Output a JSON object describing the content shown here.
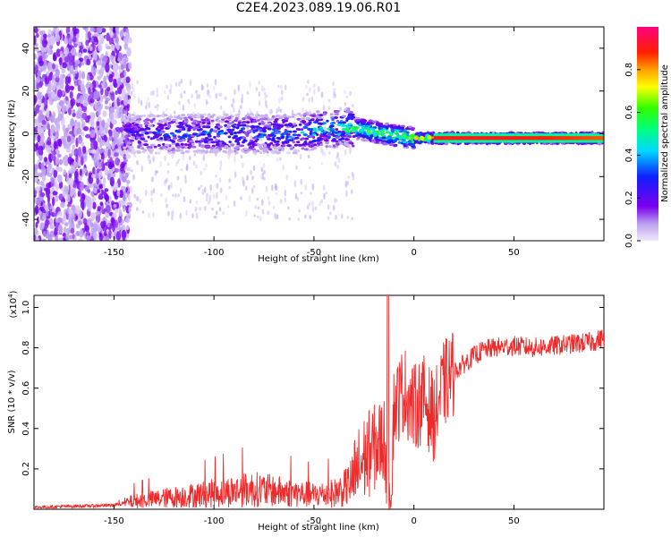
{
  "title": "C2E4.2023.089.19.06.R01",
  "chart_data": [
    {
      "type": "heatmap",
      "xlabel": "Height of straight line (km)",
      "ylabel": "Frequency (Hz)",
      "xlim": [
        -190,
        95
      ],
      "ylim": [
        -50,
        50
      ],
      "xticks": [
        -150,
        -100,
        -50,
        0,
        50
      ],
      "yticks": [
        -40,
        -20,
        0,
        20,
        40
      ],
      "xtick_labels": [
        "-150",
        "-100",
        "-50",
        "0",
        "50"
      ],
      "ytick_labels": [
        "-40",
        "-20",
        "0",
        "20",
        "40"
      ],
      "colorbar": {
        "label": "Normalized spectral amplitude",
        "range": [
          0,
          1
        ],
        "ticks": [
          0.0,
          0.2,
          0.4,
          0.6,
          0.8
        ],
        "tick_labels": [
          "0.0",
          "0.2",
          "0.4",
          "0.6",
          "0.8"
        ]
      },
      "ridge": {
        "x": [
          -145,
          -120,
          -100,
          -80,
          -60,
          -45,
          -35,
          -25,
          -15,
          0,
          10,
          20,
          50,
          90
        ],
        "freq": [
          0,
          0,
          0,
          0,
          0,
          2,
          3,
          2,
          0,
          -2,
          -2,
          -2,
          -2,
          -2
        ],
        "amplitude": [
          0.3,
          0.4,
          0.4,
          0.45,
          0.45,
          0.55,
          0.65,
          0.7,
          0.75,
          0.85,
          0.9,
          0.9,
          0.9,
          0.85
        ]
      }
    },
    {
      "type": "line",
      "xlabel": "Height of straight line (km)",
      "ylabel": "SNR (10 * v/v)",
      "scale_label": "(x10",
      "scale_exp": "4",
      "scale_close": ")",
      "xlim": [
        -190,
        95
      ],
      "ylim": [
        0,
        1.06
      ],
      "xticks": [
        -150,
        -100,
        -50,
        0,
        50
      ],
      "yticks": [
        0.2,
        0.4,
        0.6,
        0.8,
        1.0
      ],
      "xtick_labels": [
        "-150",
        "-100",
        "-50",
        "0",
        "50"
      ],
      "ytick_labels": [
        "0.2",
        "0.4",
        "0.6",
        "0.8",
        "1.0"
      ],
      "color": "#ee2a2a",
      "series": [
        {
          "x": [
            -190,
            -170,
            -150,
            -140,
            -130,
            -120,
            -110,
            -100,
            -90,
            -80,
            -70,
            -60,
            -50,
            -40,
            -35,
            -30,
            -25,
            -20,
            -15,
            -12,
            -10,
            -5,
            0,
            5,
            10,
            15,
            20,
            25,
            30,
            35,
            40,
            50,
            60,
            70,
            80,
            90,
            95
          ],
          "values": [
            0.01,
            0.015,
            0.02,
            0.04,
            0.05,
            0.06,
            0.07,
            0.08,
            0.09,
            0.1,
            0.09,
            0.08,
            0.07,
            0.08,
            0.1,
            0.15,
            0.25,
            0.3,
            0.35,
            0.1,
            0.5,
            0.6,
            0.5,
            0.55,
            0.45,
            0.62,
            0.68,
            0.72,
            0.76,
            0.79,
            0.8,
            0.81,
            0.8,
            0.81,
            0.82,
            0.83,
            0.85
          ]
        }
      ]
    }
  ]
}
